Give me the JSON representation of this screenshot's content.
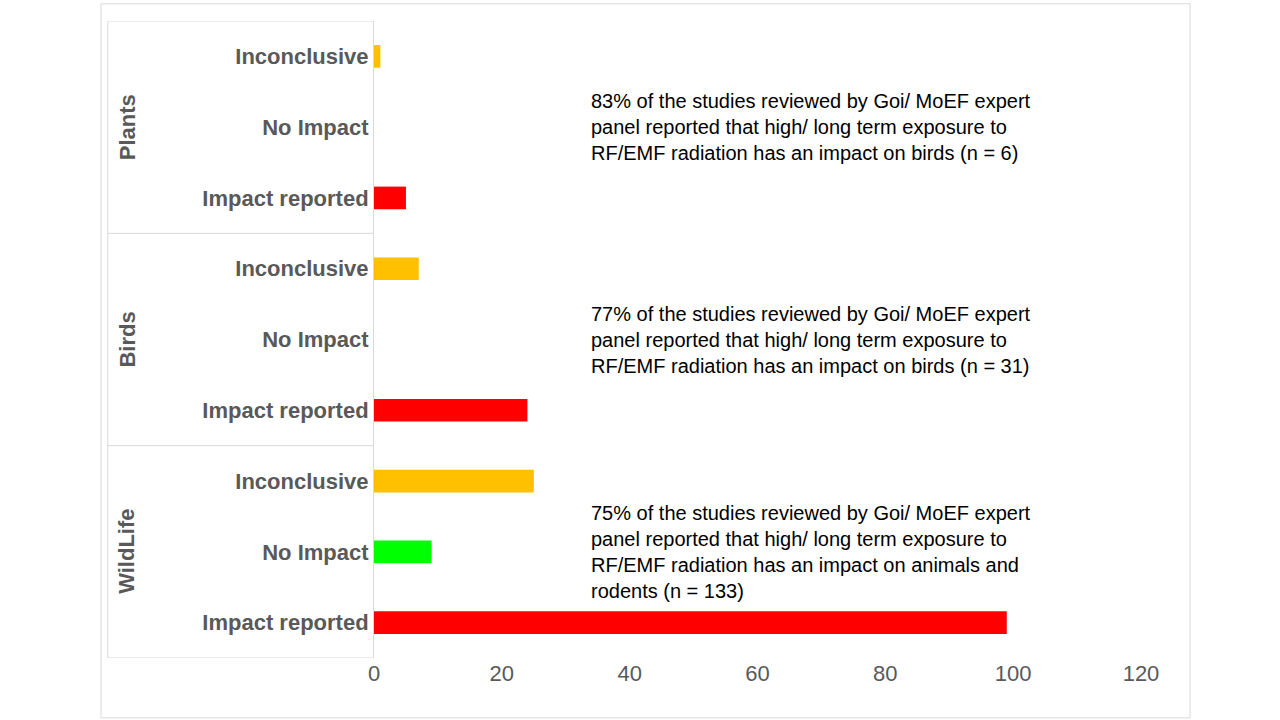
{
  "chart_data": {
    "type": "bar",
    "orientation": "horizontal",
    "categories": [
      "Inconclusive",
      "No Impact",
      "Impact reported",
      "Inconclusive",
      "No Impact",
      "Impact reported",
      "Inconclusive",
      "No Impact",
      "Impact reported"
    ],
    "groups": [
      "Plants",
      "Plants",
      "Plants",
      "Birds",
      "Birds",
      "Birds",
      "WildLife",
      "WildLife",
      "WildLife"
    ],
    "values": [
      1,
      0,
      5,
      7,
      0,
      24,
      25,
      9,
      99
    ],
    "colors": [
      "#ffc000",
      "#00ff00",
      "#ff0000",
      "#ffc000",
      "#00ff00",
      "#ff0000",
      "#ffc000",
      "#00ff00",
      "#ff0000"
    ],
    "xlim": [
      0,
      120
    ],
    "xticks": [
      0,
      20,
      40,
      60,
      80,
      100,
      120
    ],
    "grid": false,
    "annotations": [
      {
        "group": "Plants",
        "text": "83% of the studies reviewed by Goi/ MoEF expert panel reported that high/ long term exposure to RF/EMF radiation has an impact on birds (n = 6)"
      },
      {
        "group": "Birds",
        "text": "77% of the studies reviewed by Goi/ MoEF expert panel reported that high/ long term exposure to RF/EMF radiation has an impact on birds (n = 31)"
      },
      {
        "group": "WildLife",
        "text": "75% of the studies reviewed by Goi/ MoEF expert panel reported that high/ long term exposure to RF/EMF radiation has an impact on animals and rodents (n = 133)"
      }
    ]
  }
}
